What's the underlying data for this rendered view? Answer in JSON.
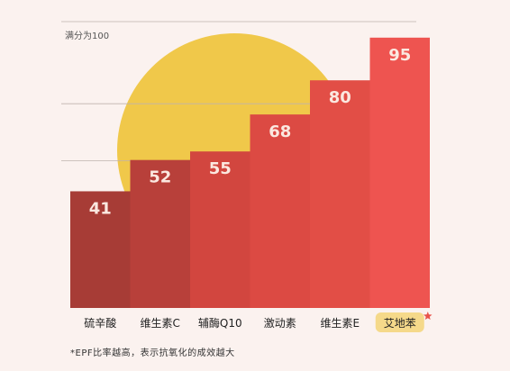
{
  "chart_data": {
    "type": "bar",
    "categories": [
      "硫辛酸",
      "维生素C",
      "辅酶Q10",
      "激动素",
      "维生素E",
      "艾地苯"
    ],
    "values": [
      41,
      52,
      55,
      68,
      80,
      95
    ],
    "ylim": [
      0,
      100
    ],
    "scale_note": "满分为100",
    "footnote": "*EPF比率越高，表示抗氧化的成效越大",
    "highlight_category": "艾地苯",
    "grid": true,
    "colors": {
      "background": "#fbf2ef",
      "sun": "#f0c84a",
      "bars": [
        "#a73c36",
        "#b8403a",
        "#d2463f",
        "#dc4a43",
        "#e24e46",
        "#ee5450"
      ],
      "value_label": "#fbe8e0",
      "highlight_badge": "#f5d98a",
      "star": "#e8534a"
    }
  }
}
